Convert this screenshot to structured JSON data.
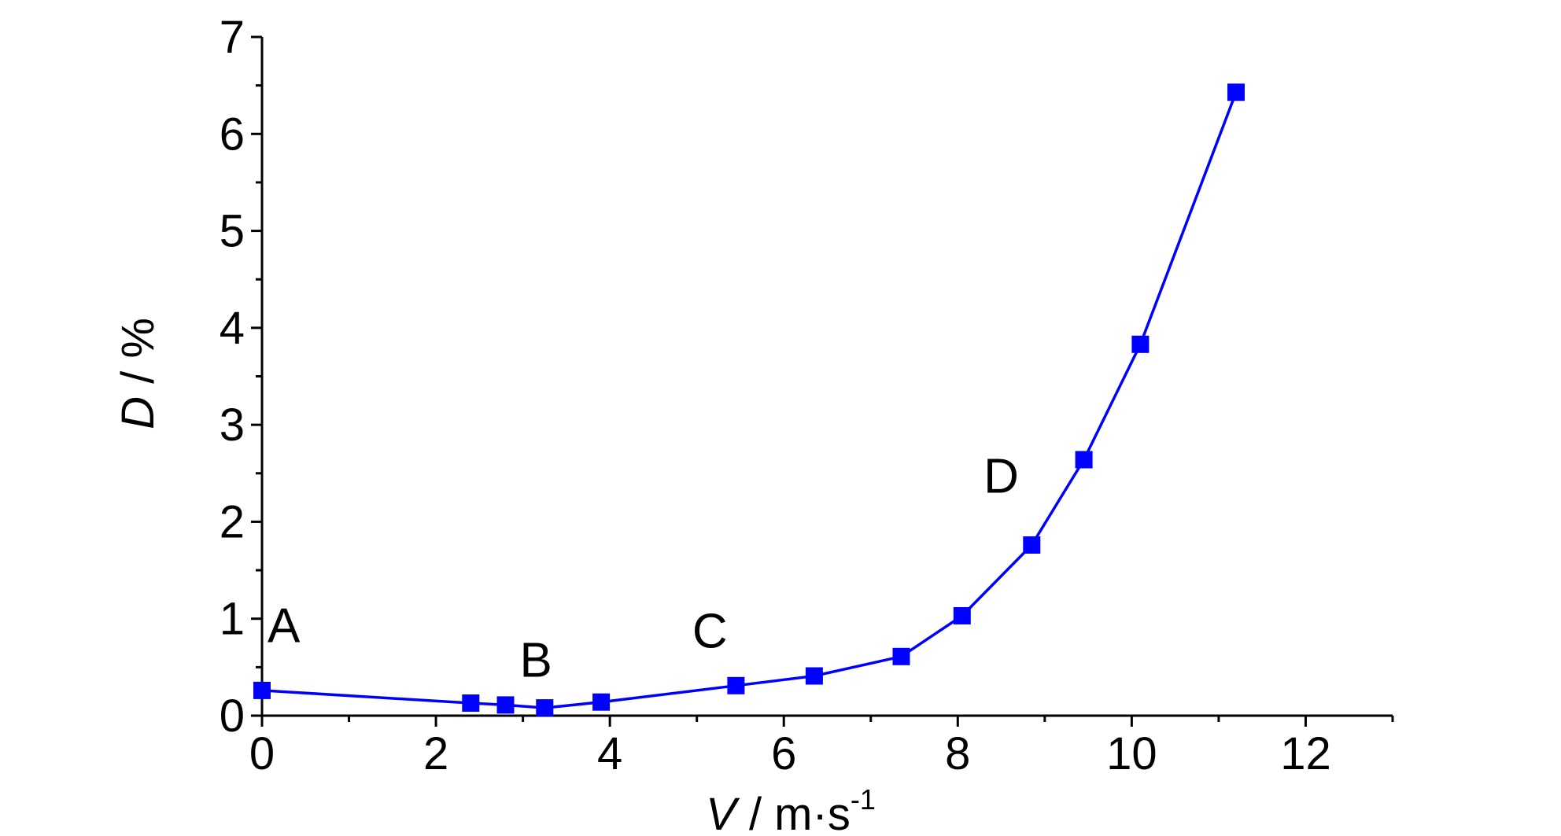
{
  "chart_data": {
    "type": "line",
    "xlabel_var": "V",
    "xlabel_unit": " / m·s",
    "xlabel_sup": "-1",
    "ylabel_var": "D",
    "ylabel_unit": " / %",
    "xlim": [
      0,
      13
    ],
    "ylim": [
      0,
      7
    ],
    "xticks": [
      0,
      2,
      4,
      6,
      8,
      10,
      12
    ],
    "yticks": [
      0,
      1,
      2,
      3,
      4,
      5,
      6,
      7
    ],
    "grid": false,
    "line_color": "#0000ff",
    "marker_color": "#0000ff",
    "marker": "square",
    "series": [
      {
        "x": [
          0.0,
          2.4,
          2.8,
          3.25,
          3.9,
          5.45,
          6.35,
          7.35,
          8.05,
          8.85,
          9.45,
          10.1,
          11.2
        ],
        "y": [
          0.26,
          0.13,
          0.11,
          0.08,
          0.14,
          0.31,
          0.41,
          0.61,
          1.03,
          1.76,
          2.64,
          3.83,
          6.43
        ]
      }
    ],
    "annotations": [
      {
        "text": "A",
        "x": 0.25,
        "y": 0.76
      },
      {
        "text": "B",
        "x": 3.15,
        "y": 0.4
      },
      {
        "text": "C",
        "x": 5.15,
        "y": 0.7
      },
      {
        "text": "D",
        "x": 8.5,
        "y": 2.3
      }
    ]
  }
}
